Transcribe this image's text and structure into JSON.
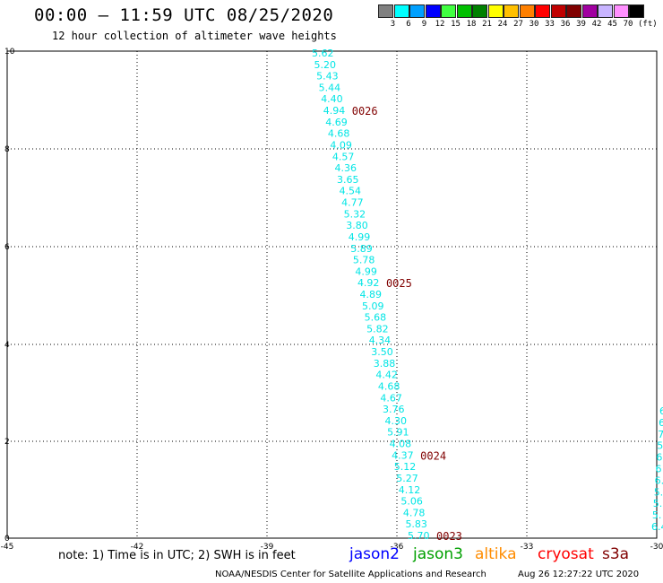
{
  "header": {
    "title": "00:00 – 11:59 UTC 08/25/2020",
    "subtitle": "12 hour collection of altimeter wave heights"
  },
  "legend": {
    "colors": [
      "#808080",
      "#00ffff",
      "#00a0ff",
      "#0000ff",
      "#40ff40",
      "#00c000",
      "#008000",
      "#ffff00",
      "#ffc000",
      "#ff8000",
      "#ff0000",
      "#c00000",
      "#800000",
      "#a000a0",
      "#c8b4ff",
      "#ff90ff",
      "#000000"
    ],
    "ticks": [
      "3",
      "6",
      "9",
      "12",
      "15",
      "18",
      "21",
      "24",
      "27",
      "30",
      "33",
      "36",
      "39",
      "42",
      "45",
      "70"
    ],
    "unit": "(ft)"
  },
  "map": {
    "x_ticks": [
      "-45",
      "-42",
      "-39",
      "-36",
      "-33",
      "-30"
    ],
    "y_ticks": [
      "10",
      "8",
      "6",
      "4",
      "2",
      "0"
    ],
    "track_color": "#00e5e5",
    "time_label_color": "#800000",
    "main_track_values": [
      "5.62",
      "5.20",
      "5.43",
      "5.44",
      "4.40",
      "4.94",
      "4.69",
      "4.68",
      "4.09",
      "4.57",
      "4.36",
      "3.65",
      "4.54",
      "4.77",
      "5.32",
      "3.80",
      "4.99",
      "5.89",
      "5.78",
      "4.99",
      "4.92",
      "4.89",
      "5.09",
      "5.68",
      "5.82",
      "4.34",
      "3.50",
      "3.88",
      "4.42",
      "4.68",
      "4.67",
      "3.76",
      "4.30",
      "5.91",
      "4.08",
      "4.37",
      "5.12",
      "5.27",
      "4.12",
      "5.06",
      "4.78",
      "5.83",
      "5.70"
    ],
    "time_labels": [
      {
        "text": "0026",
        "row": 5
      },
      {
        "text": "0025",
        "row": 20
      },
      {
        "text": "0024",
        "row": 35
      },
      {
        "text": "0023",
        "row": 42
      }
    ],
    "edge_track_values": [
      "6",
      "6",
      "7",
      "5",
      "6",
      "6",
      "6.",
      "5.",
      "5.",
      "5.",
      "6.4"
    ]
  },
  "note": "note: 1) Time is in UTC; 2) SWH is in feet",
  "satellites": [
    {
      "name": "jason2",
      "color": "#0000ff"
    },
    {
      "name": "jason3",
      "color": "#00a000"
    },
    {
      "name": "altika",
      "color": "#ff8c00"
    },
    {
      "name": "cryosat",
      "color": "#ff0000"
    },
    {
      "name": "s3a",
      "color": "#800000"
    }
  ],
  "footer": {
    "credit": "NOAA/NESDIS Center for Satellite Applications and Research",
    "timestamp": "Aug 26 12:27:22 UTC 2020"
  }
}
